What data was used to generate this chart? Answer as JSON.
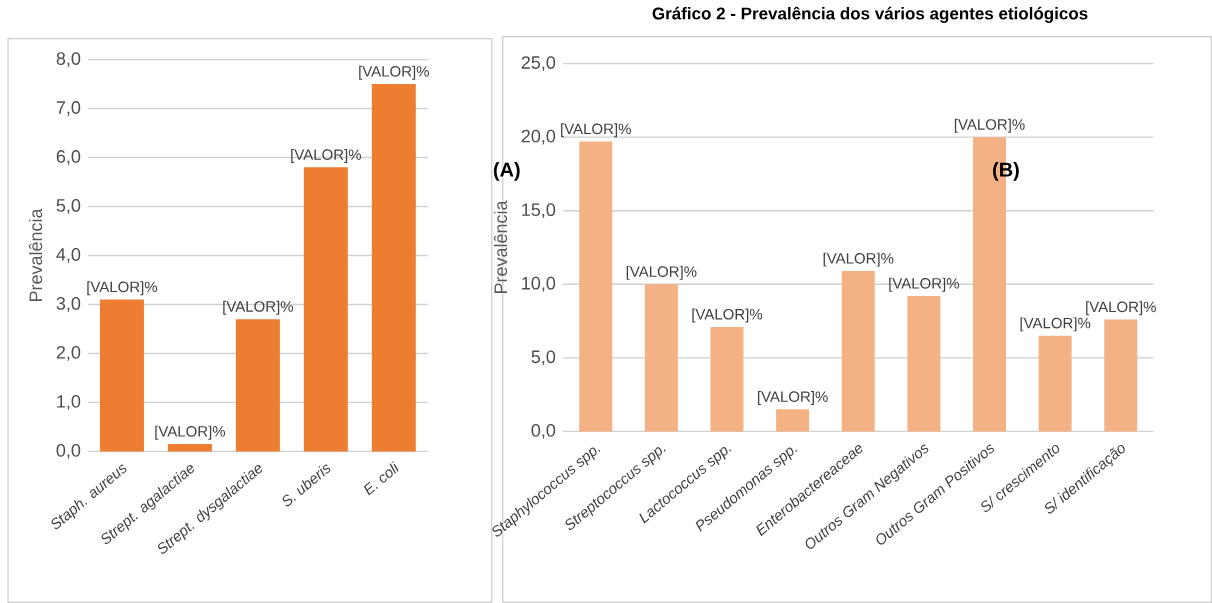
{
  "chart_data": [
    {
      "type": "bar",
      "ylabel": "Prevalência",
      "categories": [
        "Staph. aureus",
        "Strept. agalactiae",
        "Strept. dysgalactiae",
        "S. uberis",
        "E. coli"
      ],
      "values": [
        3.1,
        0.15,
        2.7,
        5.8,
        7.5
      ],
      "value_labels": [
        "[VALOR]%",
        "[VALOR]%",
        "[VALOR]%",
        "[VALOR]%",
        "[VALOR]%"
      ],
      "color": "#ed7d31",
      "ylim": [
        0,
        8
      ],
      "yticks": [
        {
          "value": 0,
          "label": "0,0"
        },
        {
          "value": 1,
          "label": "1,0"
        },
        {
          "value": 2,
          "label": "2,0"
        },
        {
          "value": 3,
          "label": "3,0"
        },
        {
          "value": 4,
          "label": "4,0"
        },
        {
          "value": 5,
          "label": "5,0"
        },
        {
          "value": 6,
          "label": "6,0"
        },
        {
          "value": 7,
          "label": "7,0"
        },
        {
          "value": 8,
          "label": "8,0"
        }
      ],
      "grid": "y"
    },
    {
      "type": "bar",
      "title": "Gráfico 2 - Prevalência dos vários agentes etiológicos",
      "ylabel": "Prevalência",
      "categories": [
        "Staphylococcus spp.",
        "Streptococcus spp.",
        "Lactococcus spp.",
        "Pseudomonas spp.",
        "Enterobactereaceae",
        "Outros Gram Negativos",
        "Outros Gram Positivos",
        "S/ crescimento",
        "S/ identificação"
      ],
      "values": [
        19.7,
        10.0,
        7.1,
        1.5,
        10.9,
        9.2,
        20.0,
        6.5,
        7.6
      ],
      "value_labels": [
        "[VALOR]%",
        "[VALOR]%",
        "[VALOR]%",
        "[VALOR]%",
        "[VALOR]%",
        "[VALOR]%",
        "[VALOR]%",
        "[VALOR]%",
        "[VALOR]%"
      ],
      "color": "#f4b183",
      "ylim": [
        0,
        25
      ],
      "yticks": [
        {
          "value": 0,
          "label": "0,0"
        },
        {
          "value": 5,
          "label": "5,0"
        },
        {
          "value": 10,
          "label": "10,0"
        },
        {
          "value": 15,
          "label": "15,0"
        },
        {
          "value": 20,
          "label": "20,0"
        },
        {
          "value": 25,
          "label": "25,0"
        }
      ],
      "annotations": [
        "(A)",
        "(B)"
      ],
      "grid": "y"
    }
  ]
}
